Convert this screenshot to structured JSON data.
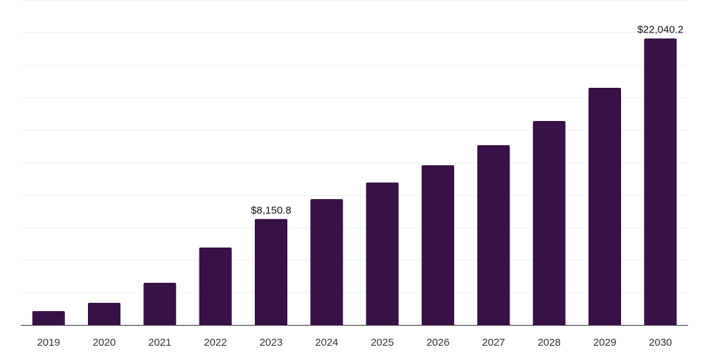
{
  "chart_data": {
    "type": "bar",
    "title": "",
    "xlabel": "",
    "ylabel": "",
    "categories": [
      "2019",
      "2020",
      "2021",
      "2022",
      "2023",
      "2024",
      "2025",
      "2026",
      "2027",
      "2028",
      "2029",
      "2030"
    ],
    "values": [
      1064,
      1702,
      3245,
      5957,
      8150.8,
      9681,
      10957,
      12287,
      13830,
      15691,
      18245,
      22040.2
    ],
    "data_labels": {
      "4": "$8,150.8",
      "11": "$22,040.2"
    },
    "ylim": [
      0,
      25000
    ],
    "grid": true,
    "grid_step": 2500,
    "bar_color": "#371147"
  }
}
